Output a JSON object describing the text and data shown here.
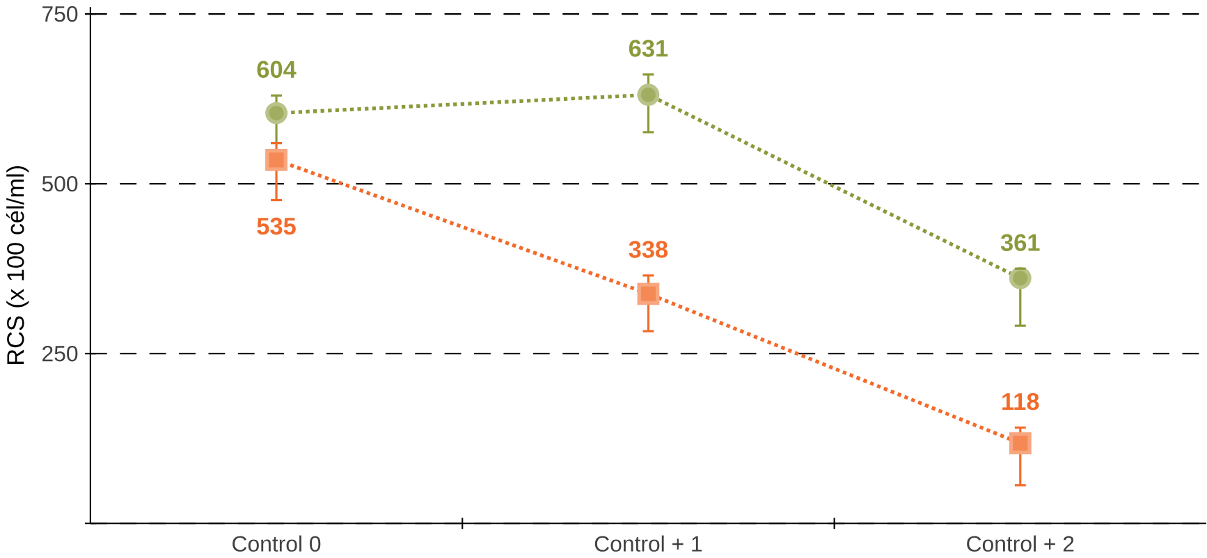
{
  "chart_data": {
    "type": "line",
    "ylabel": "RCS (x 100 cél/ml)",
    "categories": [
      "Control 0",
      "Control + 1",
      "Control + 2"
    ],
    "series": [
      {
        "color": "#8a9a3a",
        "marker": "circle",
        "values": [
          604,
          631,
          361
        ],
        "errors": [
          [
            560,
            630
          ],
          [
            576,
            661
          ],
          [
            291,
            375
          ]
        ]
      },
      {
        "color": "#f26b2a",
        "marker": "square",
        "values": [
          535,
          338,
          118
        ],
        "errors": [
          [
            476,
            560
          ],
          [
            283,
            365
          ],
          [
            56,
            141
          ]
        ]
      }
    ],
    "ylim": [
      0,
      760
    ],
    "yticks": [
      {
        "value": 0,
        "label": null
      },
      250,
      500,
      750
    ],
    "grid": "y",
    "line_style": "dotted",
    "data_labels": true
  }
}
